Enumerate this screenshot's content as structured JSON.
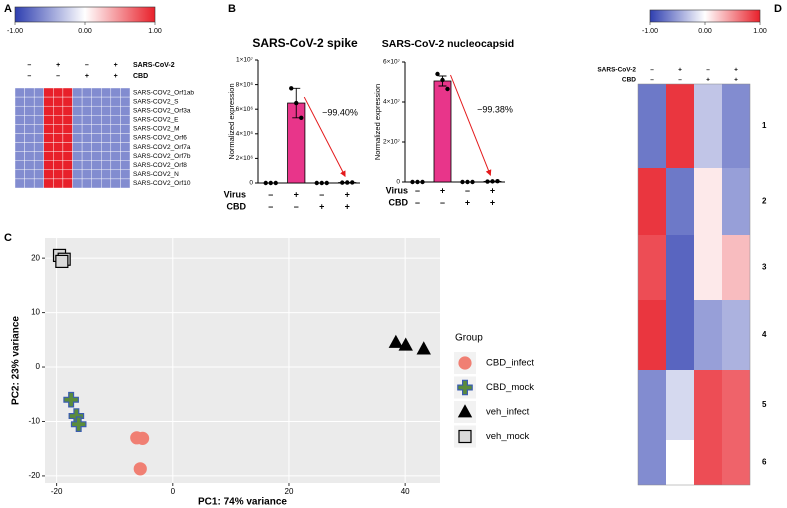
{
  "panel_labels": [
    "A",
    "B",
    "C",
    "D"
  ],
  "chart_data": [
    {
      "type": "heatmap",
      "colorbar": {
        "lim": [
          -1,
          1
        ],
        "ticks": [
          {
            "value": -1,
            "label": "-1.00"
          },
          {
            "value": 0,
            "label": "0.00"
          },
          {
            "value": 1,
            "label": "1.00"
          }
        ],
        "colors": [
          "#2f3fb0",
          "#ffffff",
          "#e8202a"
        ]
      },
      "conditions": [
        {
          "name": "SARS-CoV-2",
          "signs": [
            "–",
            "+",
            "–",
            "+"
          ]
        },
        {
          "name": "CBD",
          "signs": [
            "–",
            "–",
            "+",
            "+"
          ]
        }
      ],
      "rows": [
        "SARS-COV2_Orf1ab",
        "SARS-COV2_S",
        "SARS-COV2_Orf3a",
        "SARS-COV2_E",
        "SARS-COV2_M",
        "SARS-COV2_Orf6",
        "SARS-COV2_Orf7a",
        "SARS-COV2_Orf7b",
        "SARS-COV2_Orf8",
        "SARS-COV2_N",
        "SARS-COV2_Orf10"
      ],
      "values": [
        [
          -0.6,
          -0.6,
          -0.6,
          1,
          1,
          1,
          -0.6,
          -0.6,
          -0.6,
          -0.6,
          -0.6,
          -0.6
        ],
        [
          -0.6,
          -0.6,
          -0.6,
          1,
          1,
          1,
          -0.6,
          -0.6,
          -0.6,
          -0.6,
          -0.6,
          -0.6
        ],
        [
          -0.6,
          -0.6,
          -0.6,
          1,
          1,
          1,
          -0.6,
          -0.6,
          -0.6,
          -0.6,
          -0.6,
          -0.6
        ],
        [
          -0.6,
          -0.6,
          -0.6,
          1,
          1,
          1,
          -0.6,
          -0.6,
          -0.6,
          -0.6,
          -0.6,
          -0.6
        ],
        [
          -0.6,
          -0.6,
          -0.6,
          1,
          1,
          1,
          -0.6,
          -0.6,
          -0.6,
          -0.6,
          -0.6,
          -0.6
        ],
        [
          -0.6,
          -0.6,
          -0.6,
          1,
          1,
          1,
          -0.6,
          -0.6,
          -0.6,
          -0.6,
          -0.6,
          -0.6
        ],
        [
          -0.6,
          -0.6,
          -0.6,
          1,
          1,
          1,
          -0.6,
          -0.6,
          -0.6,
          -0.6,
          -0.6,
          -0.6
        ],
        [
          -0.6,
          -0.6,
          -0.6,
          1,
          1,
          1,
          -0.6,
          -0.6,
          -0.6,
          -0.6,
          -0.6,
          -0.6
        ],
        [
          -0.6,
          -0.6,
          -0.6,
          1,
          1,
          1,
          -0.6,
          -0.6,
          -0.6,
          -0.6,
          -0.6,
          -0.6
        ],
        [
          -0.6,
          -0.6,
          -0.6,
          1,
          1,
          1,
          -0.6,
          -0.6,
          -0.6,
          -0.6,
          -0.6,
          -0.6
        ],
        [
          -0.6,
          -0.6,
          -0.6,
          1,
          1,
          1,
          -0.6,
          -0.6,
          -0.6,
          -0.6,
          -0.6,
          -0.6
        ]
      ]
    },
    {
      "type": "bar",
      "title": "SARS-CoV-2 spike",
      "ylabel": "Normalized expression",
      "conditions": [
        {
          "name": "Virus",
          "signs": [
            "–",
            "+",
            "–",
            "+"
          ]
        },
        {
          "name": "CBD",
          "signs": [
            "–",
            "–",
            "+",
            "+"
          ]
        }
      ],
      "values": [
        0,
        6500000,
        0,
        39000
      ],
      "errors": [
        0,
        1200000,
        0,
        8500
      ],
      "points": [
        [
          0,
          0,
          0
        ],
        [
          7700000,
          6500000,
          5300000
        ],
        [
          0,
          0,
          0
        ],
        [
          30000,
          40000,
          47000
        ]
      ],
      "color": "#e8358a",
      "ylim": [
        0,
        10000000
      ],
      "yticks": [
        0,
        {
          "value": 2000000,
          "label": "2×10⁶"
        },
        {
          "value": 4000000,
          "label": "4×10⁶"
        },
        {
          "value": 6000000,
          "label": "6×10⁶"
        },
        {
          "value": 8000000,
          "label": "8×10⁶"
        },
        {
          "value": 10000000,
          "label": "1×10⁷"
        }
      ],
      "annotation": {
        "text": "−99.40%",
        "color": "#e41a1c"
      }
    },
    {
      "type": "bar",
      "title": "SARS-CoV-2 nucleocapsid",
      "ylabel": "Normalized expression",
      "conditions": [
        {
          "name": "Virus",
          "signs": [
            "–",
            "+",
            "–",
            "+"
          ]
        },
        {
          "name": "CBD",
          "signs": [
            "–",
            "–",
            "+",
            "+"
          ]
        }
      ],
      "values": [
        0,
        50500000,
        0,
        310000
      ],
      "errors": [
        0,
        2500000,
        0,
        110000
      ],
      "points": [
        [
          0,
          0,
          0
        ],
        [
          54000000,
          51000000,
          46500000
        ],
        [
          0,
          0,
          0
        ],
        [
          200000,
          310000,
          420000
        ]
      ],
      "color": "#e8358a",
      "ylim": [
        0,
        60000000
      ],
      "yticks": [
        0,
        {
          "value": 20000000,
          "label": "2×10⁷"
        },
        {
          "value": 40000000,
          "label": "4×10⁷"
        },
        {
          "value": 60000000,
          "label": "6×10⁷"
        }
      ],
      "annotation": {
        "text": "−99.38%",
        "color": "#e41a1c"
      }
    },
    {
      "type": "scatter",
      "xlabel": "PC1: 74% variance",
      "ylabel": "PC2: 23% variance",
      "xlim": [
        -22,
        46
      ],
      "ylim": [
        -21.3,
        23.7
      ],
      "xticks": [
        -20,
        0,
        20,
        40
      ],
      "yticks": [
        -20,
        -10,
        0,
        10,
        20
      ],
      "grid": true,
      "background": "#ebebeb",
      "legend": {
        "title": "Group",
        "position": "right"
      },
      "series": [
        {
          "name": "CBD_infect",
          "marker": "circle",
          "color": "#f07f73",
          "edgecolor": "#f07f73",
          "x": [
            -6.2,
            -5.2,
            -5.6
          ],
          "y": [
            -13,
            -13.1,
            -18.7
          ]
        },
        {
          "name": "CBD_mock",
          "marker": "plus",
          "color": "#5b8c3a",
          "edgecolor": "#3a5cb0",
          "x": [
            -17.5,
            -16.6,
            -16.2
          ],
          "y": [
            -6,
            -9,
            -10.5
          ]
        },
        {
          "name": "veh_infect",
          "marker": "triangle",
          "color": "#000000",
          "edgecolor": "#000000",
          "x": [
            38.4,
            40.1,
            43.2
          ],
          "y": [
            4.5,
            4,
            3.3
          ]
        },
        {
          "name": "veh_mock",
          "marker": "square",
          "color": "#d9d9d9",
          "edgecolor": "#000000",
          "x": [
            -19.5,
            -18.7,
            -19.1
          ],
          "y": [
            20.5,
            19.8,
            19.4
          ]
        }
      ]
    },
    {
      "type": "heatmap",
      "colorbar": {
        "lim": [
          -1,
          1
        ],
        "ticks": [
          {
            "value": -1,
            "label": "-1.00"
          },
          {
            "value": 0,
            "label": "0.00"
          },
          {
            "value": 1,
            "label": "1.00"
          }
        ],
        "colors": [
          "#2f3fb0",
          "#ffffff",
          "#e8202a"
        ]
      },
      "conditions": [
        {
          "name": "SARS-CoV-2",
          "signs": [
            "–",
            "+",
            "–",
            "+"
          ]
        },
        {
          "name": "CBD",
          "signs": [
            "–",
            "–",
            "+",
            "+"
          ]
        }
      ],
      "clusters": [
        "1",
        "2",
        "3",
        "4",
        "5",
        "6"
      ],
      "values": [
        [
          -0.7,
          0.9,
          -0.3,
          -0.6
        ],
        [
          0.9,
          -0.7,
          0.1,
          -0.5
        ],
        [
          0.8,
          -0.8,
          0.1,
          0.3
        ],
        [
          0.9,
          -0.8,
          -0.5,
          -0.4
        ],
        [
          -0.6,
          -0.2,
          0.8,
          0.7
        ],
        [
          -0.6,
          0.0,
          0.8,
          0.7
        ]
      ]
    }
  ]
}
